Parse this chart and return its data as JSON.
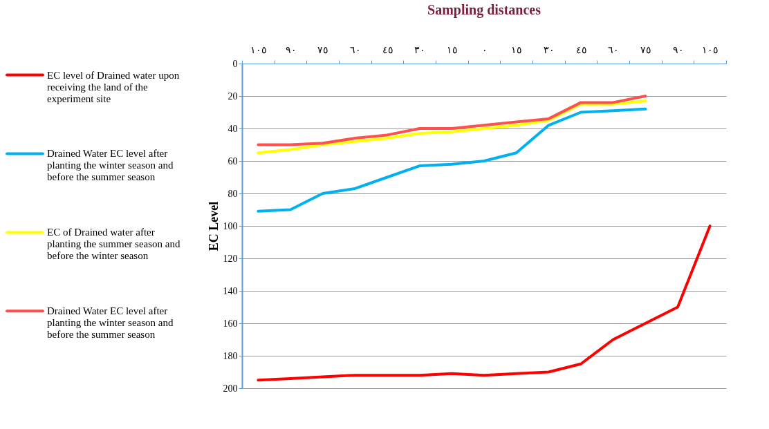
{
  "chart_data": {
    "type": "line",
    "title": "Sampling distances",
    "ylabel": "EC Level",
    "categories": [
      "١٠٥",
      "٩٠",
      "٧٥",
      "٦٠",
      "٤٥",
      "٣٠",
      "١٥",
      "٠",
      "١٥",
      "٣٠",
      "٤٥",
      "٦٠",
      "٧٥",
      "٩٠",
      "١٠٥"
    ],
    "series": [
      {
        "name": "EC level of Drained water upon receiving the land of the experiment site",
        "color": "#ff0000",
        "values": [
          195,
          194,
          193,
          192,
          192,
          192,
          191,
          192,
          191,
          190,
          185,
          170,
          160,
          150,
          100
        ]
      },
      {
        "name": "Drained Water EC level after planting the winter season and before the summer season",
        "color": "#00b0f0",
        "values": [
          91,
          90,
          80,
          77,
          70,
          63,
          62,
          60,
          55,
          38,
          30,
          29,
          28,
          null,
          null
        ]
      },
      {
        "name": "EC of Drained water after planting the summer season and before the winter season",
        "color": "#ffff00",
        "values": [
          55,
          53,
          50,
          48,
          46,
          43,
          42,
          40,
          38,
          35,
          25,
          25,
          23,
          null,
          null
        ]
      },
      {
        "name": "Drained Water EC level after planting the winter season and before the summer season",
        "color": "#ff5050",
        "values": [
          50,
          50,
          49,
          46,
          44,
          40,
          40,
          38,
          36,
          34,
          24,
          24,
          20,
          null,
          null
        ]
      }
    ],
    "ylim": [
      200,
      0
    ],
    "yticks": [
      0,
      20,
      40,
      60,
      80,
      100,
      120,
      140,
      160,
      180,
      200
    ],
    "grid": "y",
    "legend": "left",
    "line_style": "solid"
  }
}
